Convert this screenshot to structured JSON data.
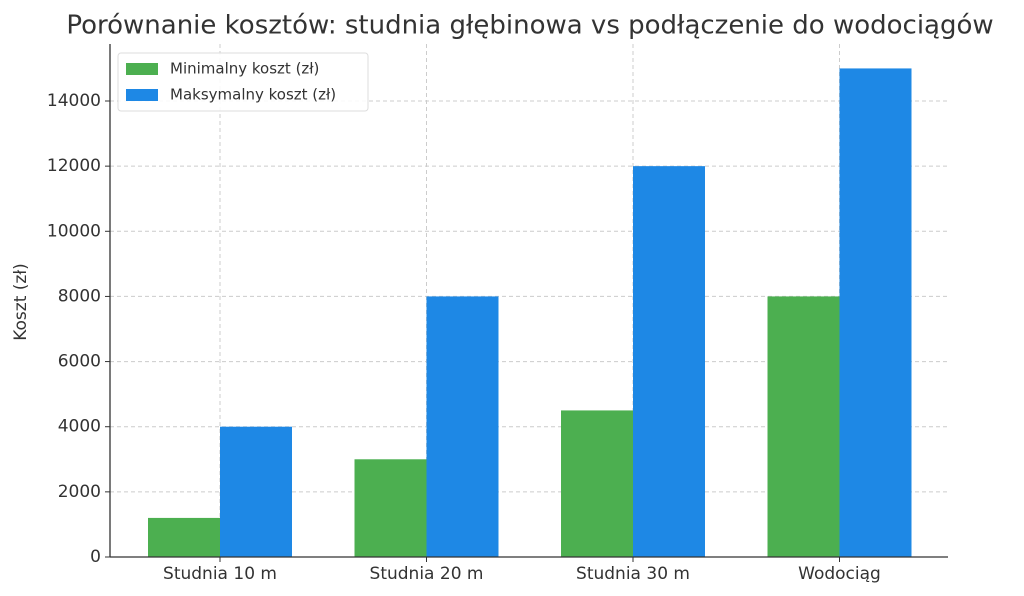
{
  "chart_data": {
    "type": "bar",
    "title": "Porównanie kosztów: studnia głębinowa vs podłączenie do wodociągów",
    "y_label": "Koszt (zł)",
    "categories": [
      "Studnia 10 m",
      "Studnia 20 m",
      "Studnia 30 m",
      "Wodociąg"
    ],
    "series": [
      {
        "name": "Minimalny koszt (zł)",
        "color": "#4caf50",
        "values": [
          1200,
          3000,
          4500,
          8000
        ]
      },
      {
        "name": "Maksymalny koszt (zł)",
        "color": "#1e88e5",
        "values": [
          4000,
          8000,
          12000,
          15000
        ]
      }
    ],
    "ylim": [
      0,
      15750
    ],
    "yticks": [
      0,
      2000,
      4000,
      6000,
      8000,
      10000,
      12000,
      14000
    ],
    "grid": true,
    "legend": "upper-left"
  }
}
